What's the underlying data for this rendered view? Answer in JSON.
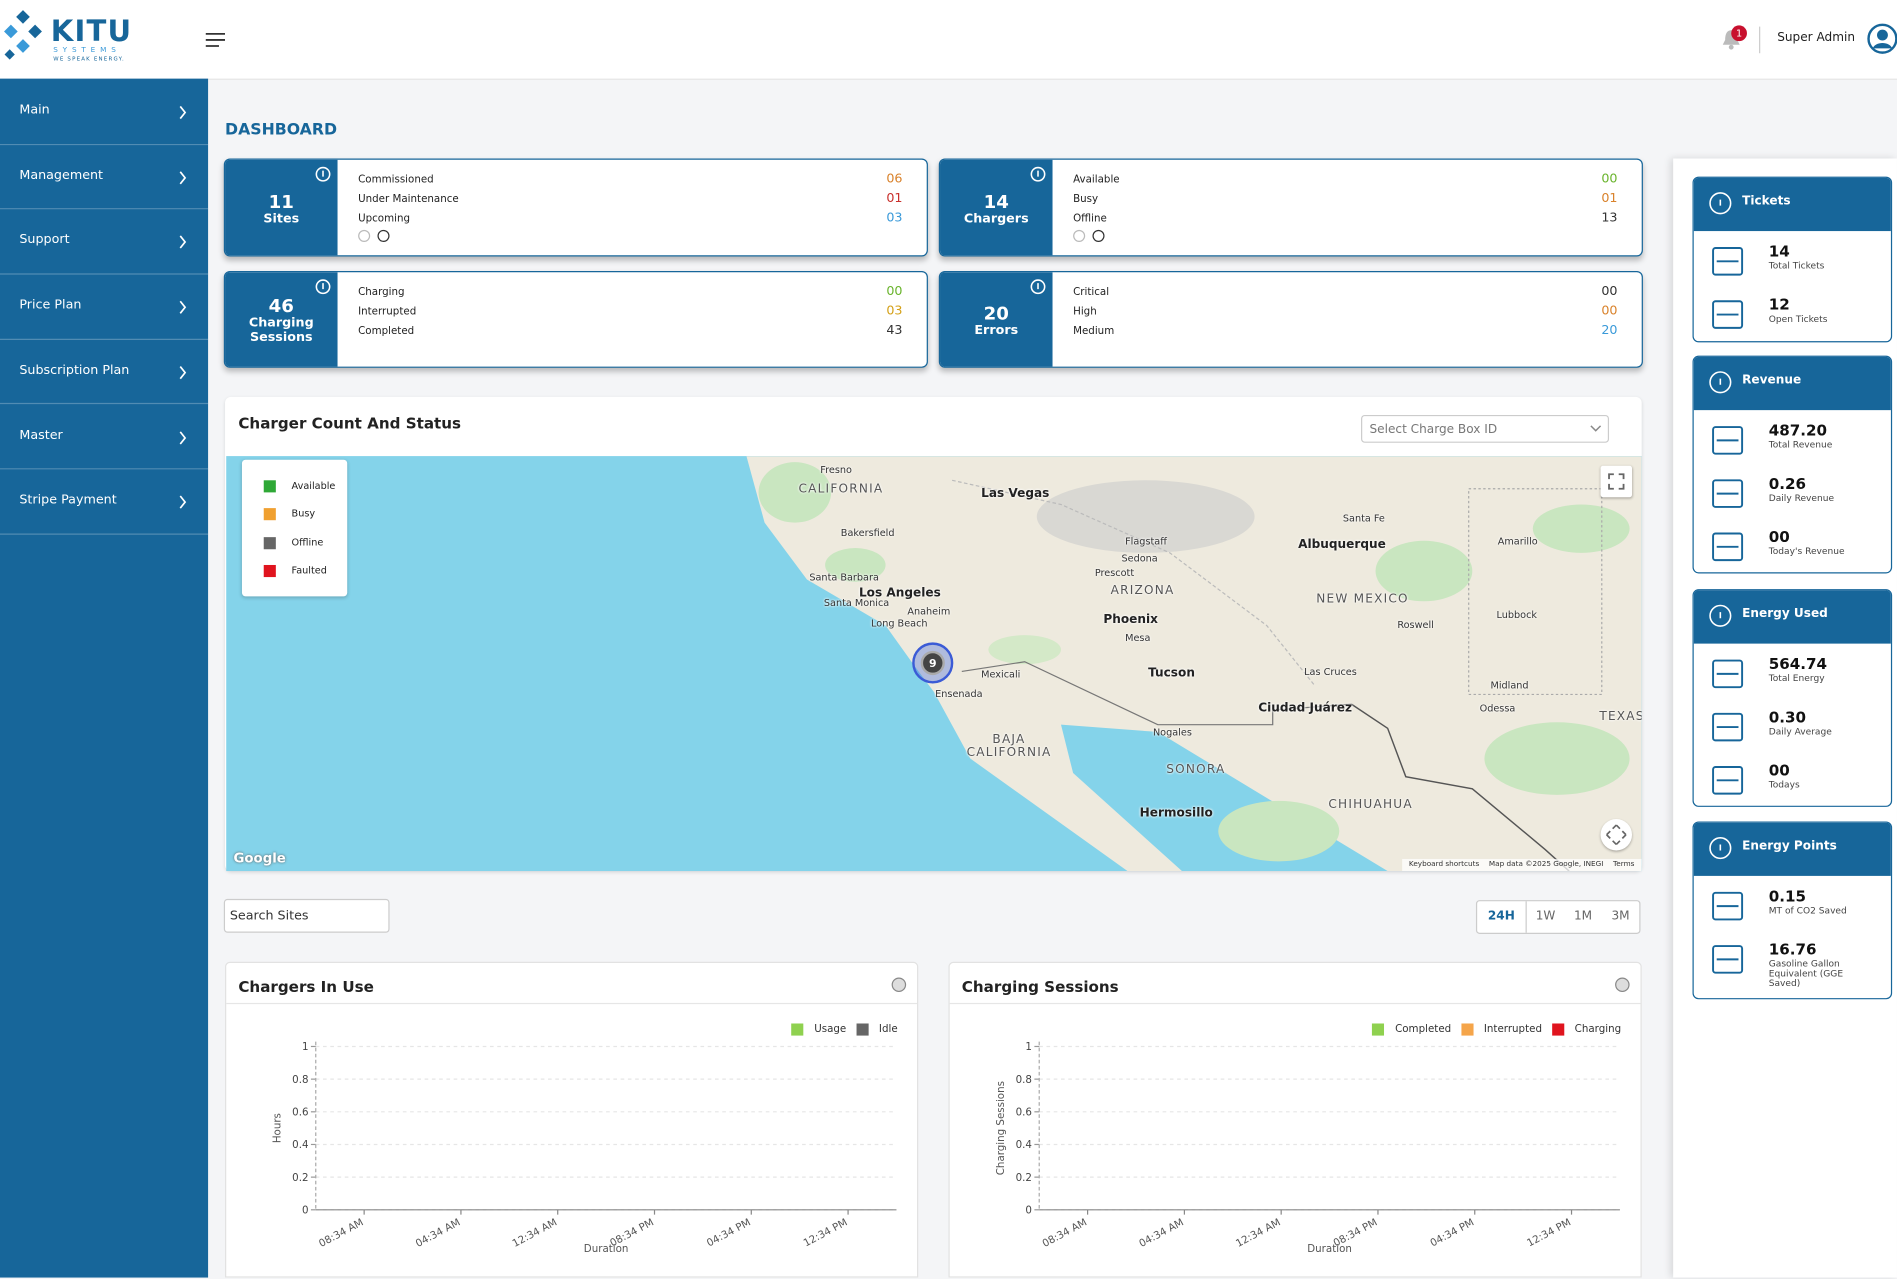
{
  "header": {
    "logo_name": "KITU",
    "logo_sub": "SYSTEMS",
    "logo_tagline": "WE SPEAK ENERGY.",
    "notification_count": "1",
    "user": "Super Admin"
  },
  "sidebar": [
    "Main",
    "Management",
    "Support",
    "Price Plan",
    "Subscription Plan",
    "Master",
    "Stripe Payment"
  ],
  "page_title": "DASHBOARD",
  "stat_cards": [
    {
      "value": "11",
      "label": "Sites",
      "pager": true,
      "rows": [
        {
          "label": "Commissioned",
          "value": "06",
          "color": "#d9822b"
        },
        {
          "label": "Under Maintenance",
          "value": "01",
          "color": "#c9302c"
        },
        {
          "label": "Upcoming",
          "value": "03",
          "color": "#3a9ad9"
        }
      ]
    },
    {
      "value": "14",
      "label": "Chargers",
      "pager": true,
      "rows": [
        {
          "label": "Available",
          "value": "00",
          "color": "#6ab42d"
        },
        {
          "label": "Busy",
          "value": "01",
          "color": "#d9822b"
        },
        {
          "label": "Offline",
          "value": "13",
          "color": "#333333"
        }
      ]
    },
    {
      "value": "46",
      "label": "Charging Sessions",
      "pager": false,
      "rows": [
        {
          "label": "Charging",
          "value": "00",
          "color": "#6ab42d"
        },
        {
          "label": "Interrupted",
          "value": "03",
          "color": "#d4a017"
        },
        {
          "label": "Completed",
          "value": "43",
          "color": "#333333"
        }
      ]
    },
    {
      "value": "20",
      "label": "Errors",
      "pager": false,
      "rows": [
        {
          "label": "Critical",
          "value": "00",
          "color": "#333333"
        },
        {
          "label": "High",
          "value": "00",
          "color": "#d9822b"
        },
        {
          "label": "Medium",
          "value": "20",
          "color": "#3a9ad9"
        }
      ]
    }
  ],
  "map": {
    "title": "Charger Count And Status",
    "select_placeholder": "Select Charge Box ID",
    "legend": [
      {
        "name": "Available",
        "color": "#2ea836"
      },
      {
        "name": "Busy",
        "color": "#f0a030"
      },
      {
        "name": "Offline",
        "color": "#666666"
      },
      {
        "name": "Faulted",
        "color": "#e0141e"
      }
    ],
    "cluster_count": "9",
    "labels": [
      "CALIFORNIA",
      "Fresno",
      "Las Vegas",
      "Bakersfield",
      "Santa Barbara",
      "Los Angeles",
      "Santa Monica",
      "Anaheim",
      "Long Beach",
      "Ensenada",
      "Mexicali",
      "BAJA CALIFORNIA",
      "Flagstaff",
      "Sedona",
      "Prescott",
      "ARIZONA",
      "Phoenix",
      "Mesa",
      "Tucson",
      "Nogales",
      "SONORA",
      "Hermosillo",
      "Albuquerque",
      "Santa Fe",
      "NEW MEXICO",
      "Roswell",
      "Las Cruces",
      "Ciudad Juárez",
      "CHIHUAHUA",
      "Lubbock",
      "Odessa",
      "Midland",
      "TEXAS",
      "Amarillo"
    ],
    "google": "Google",
    "footer": [
      "Keyboard shortcuts",
      "Map data ©2025 Google, INEGI",
      "Terms"
    ]
  },
  "search_placeholder": "Search Sites",
  "ranges": [
    "24H",
    "1W",
    "1M",
    "3M"
  ],
  "active_range": 0,
  "charts": [
    {
      "type": "line",
      "title": "Chargers In Use",
      "y_label": "Hours",
      "x_label": "Duration",
      "series": [
        {
          "name": "Usage",
          "color": "#8fd14f"
        },
        {
          "name": "Idle",
          "color": "#666666"
        }
      ],
      "ylim": [
        0,
        1
      ],
      "yticks": [
        0,
        0.2,
        0.4,
        0.6,
        0.8,
        1
      ],
      "grid": true,
      "categories": [
        "08:34 AM",
        "04:34 AM",
        "12:34 AM",
        "08:34 PM",
        "04:34 PM",
        "12:34 PM"
      ]
    },
    {
      "type": "line",
      "title": "Charging Sessions",
      "y_label": "Charging Sessions",
      "x_label": "Duration",
      "series": [
        {
          "name": "Completed",
          "color": "#8fd14f"
        },
        {
          "name": "Interrupted",
          "color": "#f5a54a"
        },
        {
          "name": "Charging",
          "color": "#e0141e"
        }
      ],
      "ylim": [
        0,
        1
      ],
      "yticks": [
        0,
        0.2,
        0.4,
        0.6,
        0.8,
        1
      ],
      "grid": true,
      "categories": [
        "08:34 AM",
        "04:34 AM",
        "12:34 AM",
        "08:34 PM",
        "04:34 PM",
        "12:34 PM"
      ]
    }
  ],
  "side_panels": [
    {
      "title": "Tickets",
      "items": [
        {
          "value": "14",
          "label": "Total Tickets"
        },
        {
          "value": "12",
          "label": "Open Tickets"
        }
      ]
    },
    {
      "title": "Revenue",
      "items": [
        {
          "value": "487.20",
          "label": "Total Revenue"
        },
        {
          "value": "0.26",
          "label": "Daily Revenue"
        },
        {
          "value": "00",
          "label": "Today's Revenue"
        }
      ]
    },
    {
      "title": "Energy Used",
      "items": [
        {
          "value": "564.74",
          "label": "Total Energy"
        },
        {
          "value": "0.30",
          "label": "Daily Average"
        },
        {
          "value": "00",
          "label": "Todays"
        }
      ]
    },
    {
      "title": "Energy Points",
      "items": [
        {
          "value": "0.15",
          "label": "MT of CO2 Saved"
        },
        {
          "value": "16.76",
          "label": "Gasoline Gallon Equivalent (GGE Saved)"
        }
      ]
    }
  ]
}
